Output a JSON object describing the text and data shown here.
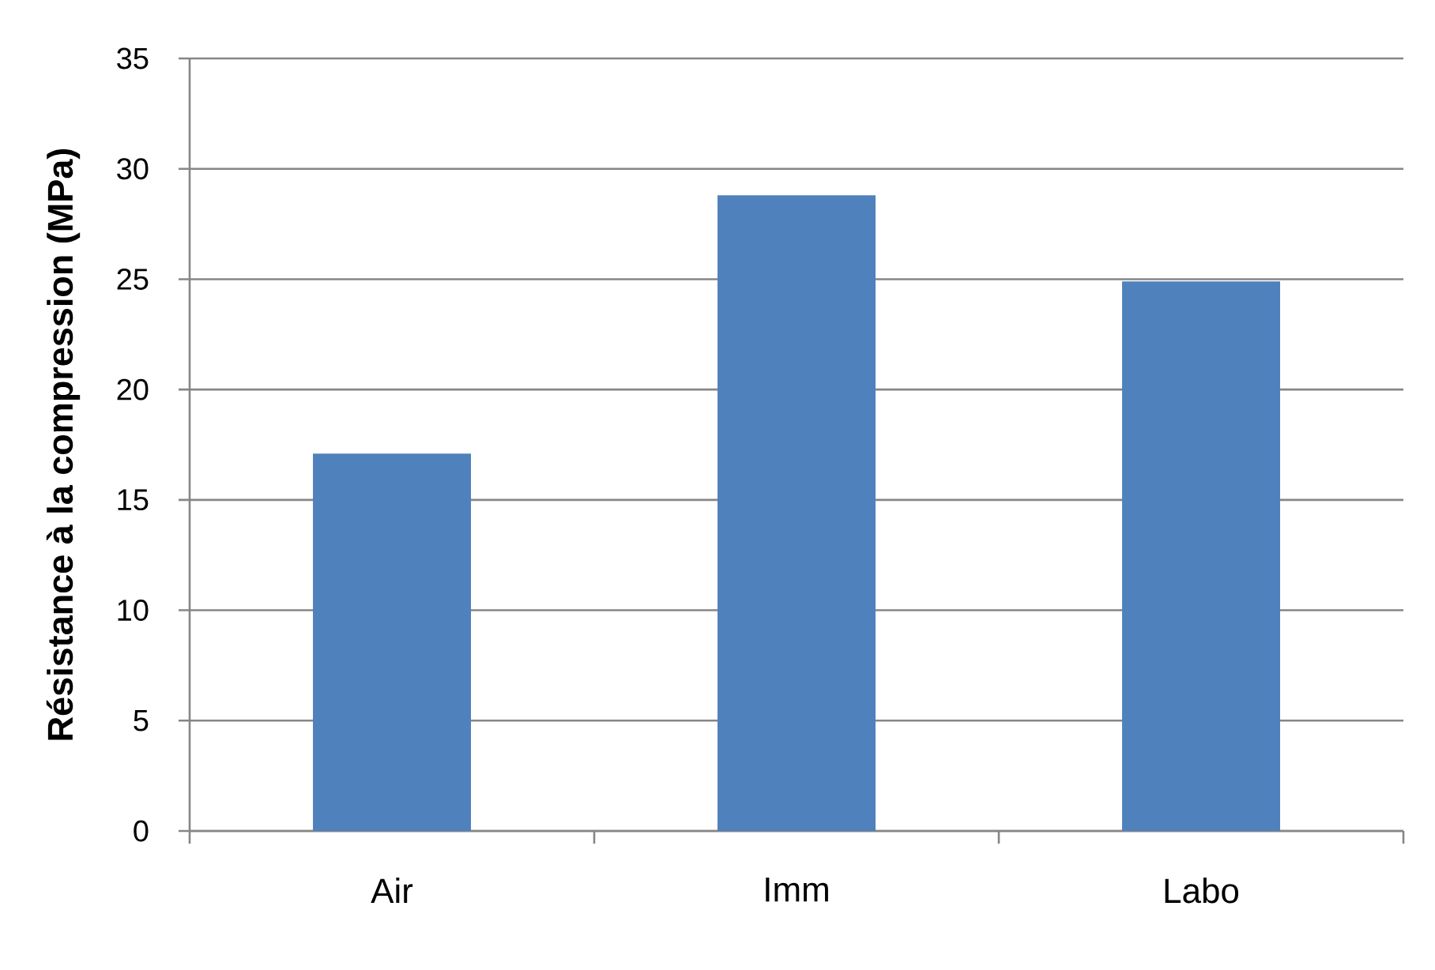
{
  "chart_data": {
    "type": "bar",
    "ylabel": "Résistance à la compression (MPa)",
    "categories": [
      "Air",
      "Imm",
      "Labo"
    ],
    "values": [
      17.1,
      28.8,
      24.9
    ],
    "color": "#4f81bd",
    "ylim": [
      0,
      35
    ],
    "yticks": [
      0,
      5,
      10,
      15,
      20,
      25,
      30,
      35
    ],
    "grid": "y"
  }
}
